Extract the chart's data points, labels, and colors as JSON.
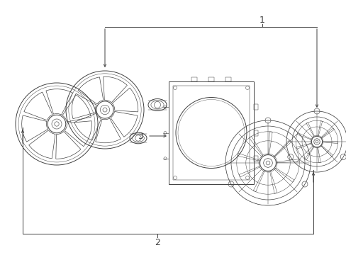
{
  "background_color": "#ffffff",
  "line_color": "#404040",
  "label_1": "1",
  "label_2": "2",
  "label_3": "3",
  "fig_width": 4.89,
  "fig_height": 3.6,
  "dpi": 100,
  "lw_main": 0.7,
  "lw_thin": 0.4,
  "lw_thick": 1.0
}
